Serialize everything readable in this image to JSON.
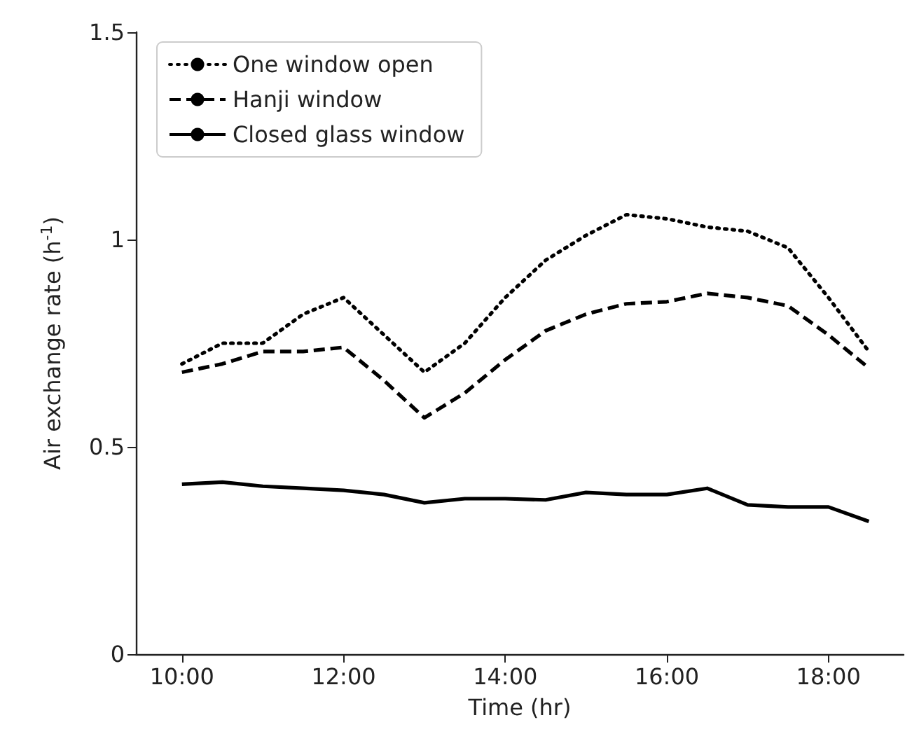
{
  "chart_data": {
    "type": "line",
    "xlabel": "Time (hr)",
    "ylabel": "Air exchange rate (h$^{-1}$)",
    "x": [
      10,
      10.5,
      11,
      11.5,
      12,
      12.5,
      13,
      13.5,
      14,
      14.5,
      15,
      15.5,
      16,
      16.5,
      17,
      17.5,
      18,
      18.5
    ],
    "series": [
      {
        "name": "One window open",
        "color": "#000000",
        "line_style": "dotted",
        "values": [
          0.7,
          0.75,
          0.75,
          0.82,
          0.86,
          0.77,
          0.68,
          0.75,
          0.86,
          0.95,
          1.01,
          1.06,
          1.05,
          1.03,
          1.02,
          0.98,
          0.86,
          0.73
        ]
      },
      {
        "name": "Hanji window",
        "color": "#000000",
        "line_style": "dashed",
        "values": [
          0.68,
          0.7,
          0.73,
          0.73,
          0.74,
          0.66,
          0.57,
          0.63,
          0.71,
          0.78,
          0.82,
          0.845,
          0.85,
          0.87,
          0.86,
          0.84,
          0.77,
          0.69
        ]
      },
      {
        "name": "Closed glass window",
        "color": "#000000",
        "line_style": "solid",
        "values": [
          0.41,
          0.415,
          0.405,
          0.4,
          0.395,
          0.385,
          0.365,
          0.375,
          0.375,
          0.372,
          0.39,
          0.385,
          0.385,
          0.4,
          0.36,
          0.355,
          0.355,
          0.32
        ]
      }
    ],
    "xlim": [
      9.43,
      18.93
    ],
    "xticks": [
      {
        "value": 10,
        "label": "10:00"
      },
      {
        "value": 12,
        "label": "12:00"
      },
      {
        "value": 14,
        "label": "14:00"
      },
      {
        "value": 16,
        "label": "16:00"
      },
      {
        "value": 18,
        "label": "18:00"
      }
    ],
    "ylim": [
      0,
      1.5
    ],
    "yticks": [
      0,
      0.5,
      1,
      1.5
    ],
    "grid": false,
    "legend": "top left",
    "marker": "none"
  }
}
